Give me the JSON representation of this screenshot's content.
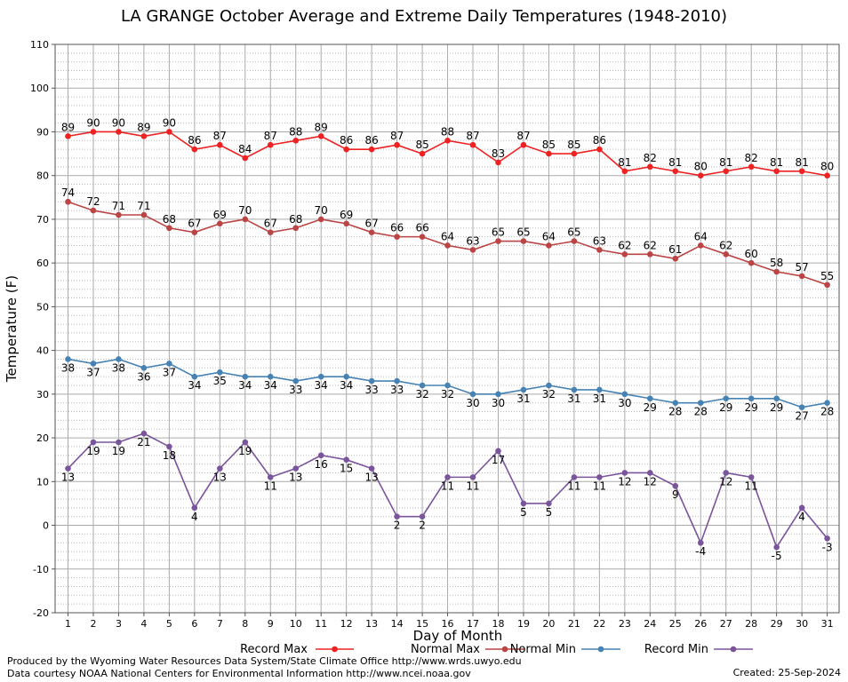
{
  "chart_data": {
    "type": "line",
    "title": "LA GRANGE October Average and Extreme Daily Temperatures (1948-2010)",
    "xlabel": "Day of Month",
    "ylabel": "Temperature (F)",
    "ylim": [
      -20,
      110
    ],
    "ytick_step": 10,
    "grid": true,
    "legend_position": "bottom",
    "x": [
      1,
      2,
      3,
      4,
      5,
      6,
      7,
      8,
      9,
      10,
      11,
      12,
      13,
      14,
      15,
      16,
      17,
      18,
      19,
      20,
      21,
      22,
      23,
      24,
      25,
      26,
      27,
      28,
      29,
      30,
      31
    ],
    "series": [
      {
        "name": "Record Max",
        "color": "#ee2222",
        "label_position": "above",
        "values": [
          89,
          90,
          90,
          89,
          90,
          86,
          87,
          84,
          87,
          88,
          89,
          86,
          86,
          87,
          85,
          88,
          87,
          83,
          87,
          85,
          85,
          86,
          81,
          82,
          81,
          80,
          81,
          82,
          81,
          81,
          80
        ]
      },
      {
        "name": "Normal Max",
        "color": "#bb4444",
        "label_position": "above",
        "values": [
          74,
          72,
          71,
          71,
          68,
          67,
          69,
          70,
          67,
          68,
          70,
          69,
          67,
          66,
          66,
          64,
          63,
          65,
          65,
          64,
          65,
          63,
          62,
          62,
          61,
          64,
          62,
          60,
          58,
          57,
          55
        ]
      },
      {
        "name": "Normal Min",
        "color": "#4682b4",
        "label_position": "below",
        "values": [
          38,
          37,
          38,
          36,
          37,
          34,
          35,
          34,
          34,
          33,
          34,
          34,
          33,
          33,
          32,
          32,
          30,
          30,
          31,
          32,
          31,
          31,
          30,
          29,
          28,
          28,
          29,
          29,
          29,
          27,
          28
        ]
      },
      {
        "name": "Record Min",
        "color": "#7a559b",
        "label_position": "below",
        "values": [
          13,
          19,
          19,
          21,
          18,
          4,
          13,
          19,
          11,
          13,
          16,
          15,
          13,
          2,
          2,
          11,
          11,
          17,
          5,
          5,
          11,
          11,
          12,
          12,
          9,
          -4,
          12,
          11,
          -5,
          4,
          -3
        ]
      }
    ]
  },
  "footer": {
    "produced_by": "Produced by the Wyoming Water Resources Data System/State Climate Office http://www.wrds.uwyo.edu",
    "data_courtesy": "Data courtesy NOAA National Centers for Environmental Information http://www.ncei.noaa.gov",
    "created": "Created:  25-Sep-2024"
  }
}
